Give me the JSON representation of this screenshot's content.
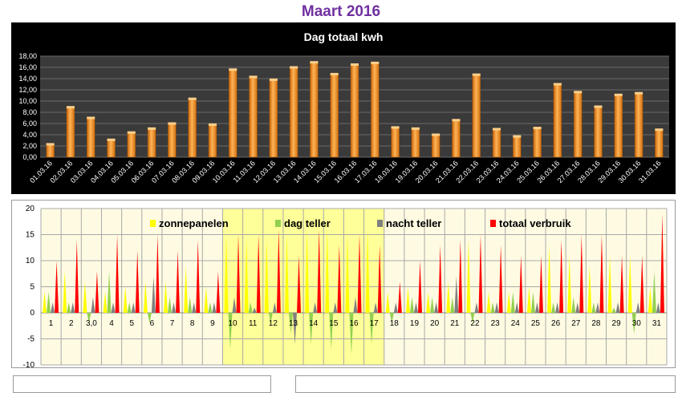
{
  "page_title": "Maart 2016",
  "chart_data": [
    {
      "type": "bar",
      "title": "Dag totaal kwh",
      "xlabel": "",
      "ylabel": "",
      "ylim": [
        0,
        18
      ],
      "yticks": [
        "0,00",
        "2,00",
        "4,00",
        "6,00",
        "8,00",
        "10,00",
        "12,00",
        "14,00",
        "16,00",
        "18,00"
      ],
      "grid": true,
      "categories": [
        "01.03.16",
        "02.03.16",
        "03.03.16",
        "04.03.16",
        "05.03.16",
        "06.03.16",
        "07.03.16",
        "08.03.16",
        "09.03.16",
        "10.03.16",
        "11.03.16",
        "12.03.16",
        "13.03.16",
        "14.03.16",
        "15.03.16",
        "16.03.16",
        "17.03.16",
        "18.03.16",
        "19.03.16",
        "20.03.16",
        "21.03.16",
        "22.03.16",
        "23.03.16",
        "24.03.16",
        "25.03.16",
        "26.03.16",
        "27.03.16",
        "28.03.16",
        "29.03.16",
        "30.03.16",
        "31.03.16"
      ],
      "values": [
        2.3,
        8.9,
        7.0,
        3.1,
        4.4,
        5.1,
        6.0,
        10.4,
        5.8,
        15.6,
        14.3,
        13.8,
        16.0,
        16.9,
        14.8,
        16.5,
        16.8,
        5.3,
        5.1,
        4.0,
        6.6,
        14.7,
        5.0,
        3.7,
        5.2,
        13.0,
        11.6,
        9.0,
        11.1,
        11.4,
        4.9
      ],
      "colors": {
        "bar": "#f28c1e",
        "background": "#000000",
        "plot": "#3a3a3a",
        "title": "#ffffff"
      }
    },
    {
      "type": "line",
      "title": "",
      "ylim": [
        -10,
        20
      ],
      "yticks": [
        "-10",
        "-5",
        "0",
        "5",
        "10",
        "15",
        "20"
      ],
      "grid": true,
      "legend_position": "top",
      "categories": [
        "1",
        "2",
        "3,0",
        "4",
        "5",
        "6",
        "7",
        "8",
        "9",
        "10",
        "11",
        "12",
        "13",
        "14",
        "15",
        "16",
        "17",
        "18",
        "19",
        "20",
        "21",
        "22",
        "23",
        "24",
        "25",
        "26",
        "27",
        "28",
        "29",
        "30",
        "31"
      ],
      "highlight_days": [
        "10",
        "11",
        "12",
        "13",
        "14",
        "15",
        "16",
        "17"
      ],
      "series": [
        {
          "name": "zonnepanelen",
          "color": "#ffff00",
          "values": [
            4,
            8,
            6,
            4,
            5,
            6,
            6,
            9,
            5,
            15,
            14,
            14,
            15,
            16,
            16,
            15,
            16,
            4,
            5,
            4,
            6,
            14,
            4,
            4,
            5,
            13,
            11,
            9,
            11,
            11,
            5
          ]
        },
        {
          "name": "dag teller",
          "color": "#92d050",
          "values": [
            4,
            2,
            -2,
            8,
            2,
            -2,
            3,
            3,
            2,
            -7,
            2,
            -2,
            -4,
            -6,
            -7,
            -8,
            -6,
            -2,
            3,
            3,
            3,
            -2,
            2,
            4,
            4,
            2,
            3,
            2,
            1,
            -4,
            8
          ]
        },
        {
          "name": "nacht teller",
          "color": "#808080",
          "values": [
            2,
            2,
            3,
            2,
            2,
            7,
            2,
            2,
            2,
            3,
            1,
            2,
            -6,
            2,
            2,
            3,
            2,
            2,
            2,
            2,
            7,
            2,
            2,
            2,
            2,
            2,
            2,
            2,
            2,
            2,
            2
          ]
        },
        {
          "name": "totaal verbruik",
          "color": "#ff0000",
          "values": [
            10,
            14,
            8,
            15,
            12,
            15,
            12,
            14,
            8,
            15,
            15,
            16,
            11,
            16,
            13,
            15,
            13,
            6,
            10,
            13,
            14,
            15,
            13,
            11,
            11,
            14,
            15,
            15,
            11,
            11,
            19
          ]
        }
      ]
    }
  ]
}
